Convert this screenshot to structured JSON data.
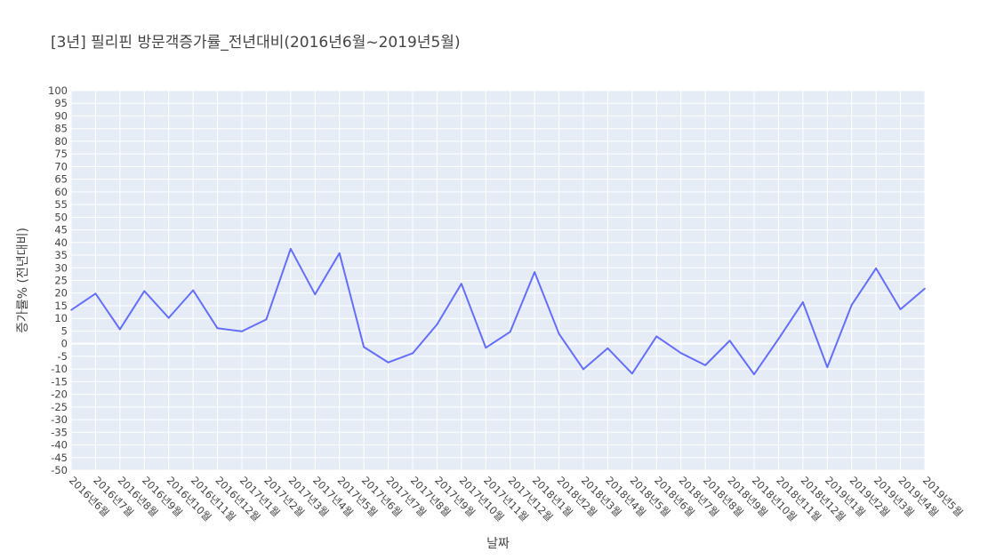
{
  "chart_data": {
    "type": "line",
    "title": "[3년] 필리핀 방문객증가률_전년대비(2016년6월~2019년5월)",
    "xlabel": "날짜",
    "ylabel": "증가률% (전년대비)",
    "ylim": [
      -50,
      100
    ],
    "ytick_step": 5,
    "grid": true,
    "plot_bg": "#e5ecf6",
    "line_color": "#636efa",
    "categories": [
      "2016년6월",
      "2016년7월",
      "2016년8월",
      "2016년9월",
      "2016년10월",
      "2016년11월",
      "2016년12월",
      "2017년1월",
      "2017년2월",
      "2017년3월",
      "2017년4월",
      "2017년5월",
      "2017년6월",
      "2017년7월",
      "2017년8월",
      "2017년9월",
      "2017년10월",
      "2017년11월",
      "2017년12월",
      "2018년1월",
      "2018년2월",
      "2018년3월",
      "2018년4월",
      "2018년5월",
      "2018년6월",
      "2018년7월",
      "2018년8월",
      "2018년9월",
      "2018년10월",
      "2018년11월",
      "2018년12월",
      "2019년1월",
      "2019년2월",
      "2019년3월",
      "2019년4월",
      "2019년5월"
    ],
    "values": [
      13.3,
      19.8,
      5.7,
      20.8,
      10.2,
      21.1,
      6.1,
      4.9,
      9.6,
      37.5,
      19.5,
      35.8,
      -1.3,
      -7.4,
      -3.8,
      7.6,
      23.7,
      -1.6,
      4.7,
      28.3,
      3.9,
      -10.1,
      -1.8,
      -11.8,
      2.9,
      -3.7,
      -8.5,
      1.2,
      -12.1,
      1.9,
      16.4,
      -9.3,
      15.3,
      29.8,
      13.6,
      21.8
    ]
  }
}
